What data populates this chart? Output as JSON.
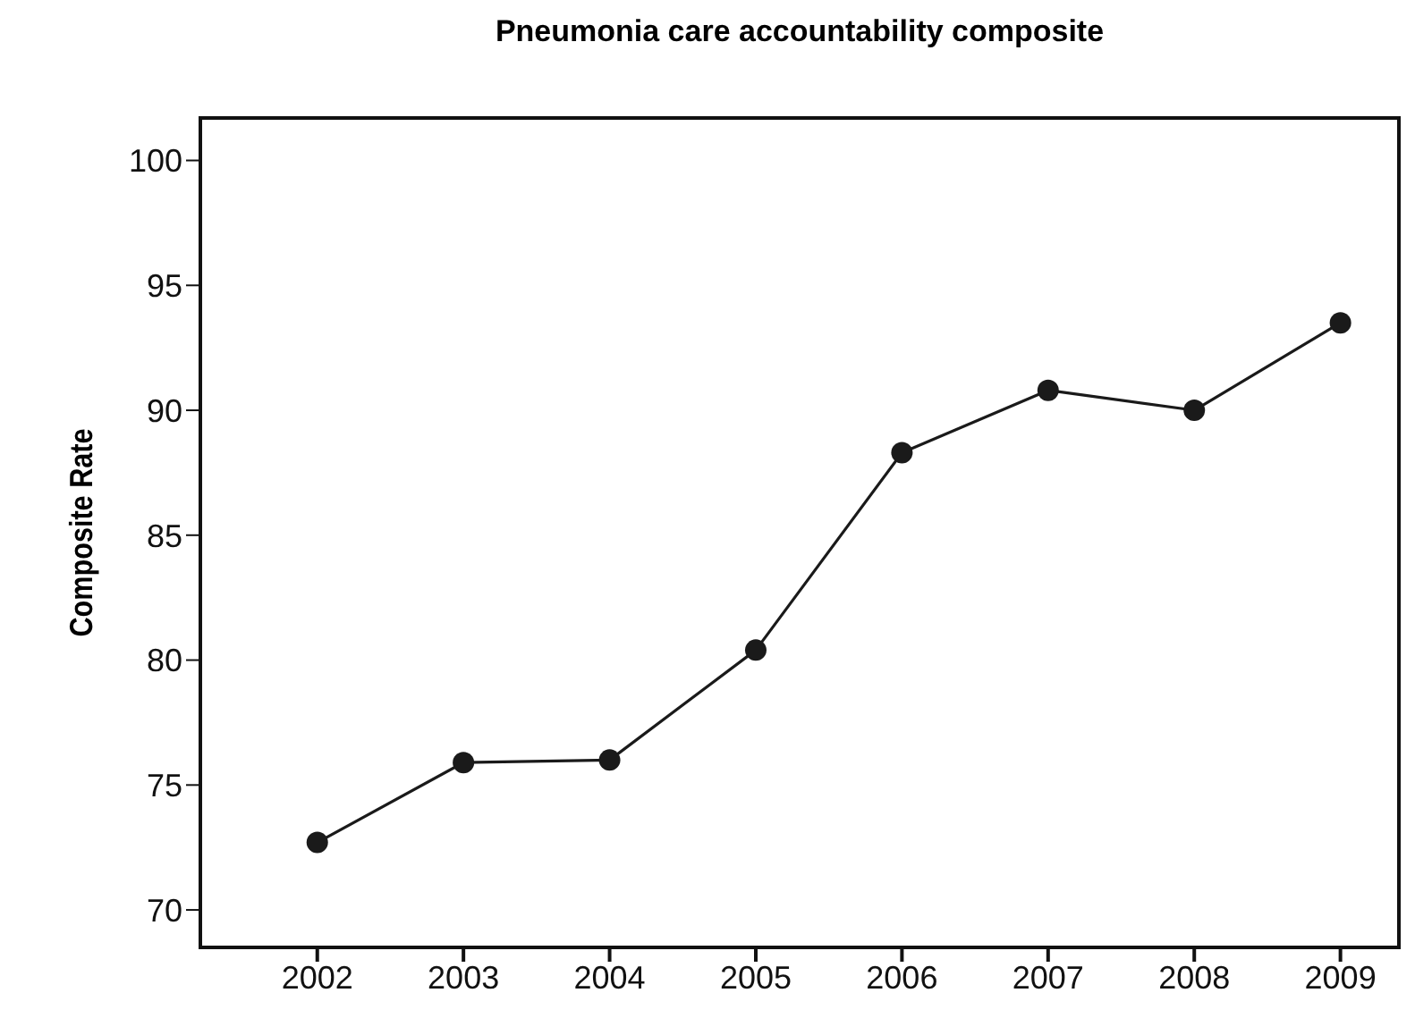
{
  "chart_data": {
    "type": "line",
    "title": "Pneumonia care accountability composite",
    "ylabel": "Composite Rate",
    "x": [
      2002,
      2003,
      2004,
      2005,
      2006,
      2007,
      2008,
      2009
    ],
    "series": [
      {
        "color": "#1a1a1a",
        "values": [
          72.7,
          75.9,
          76.0,
          80.4,
          88.3,
          90.8,
          90.0,
          93.5
        ]
      }
    ],
    "xlim": [
      2001.2,
      2009.4
    ],
    "xticks": [
      2002,
      2003,
      2004,
      2005,
      2006,
      2007,
      2008,
      2009
    ],
    "ylim": [
      68.5,
      101.7
    ],
    "yticks": [
      70,
      75,
      80,
      85,
      90,
      95,
      100
    ],
    "grid": false,
    "legend": false,
    "marker": "circle",
    "line_style": "solid"
  }
}
